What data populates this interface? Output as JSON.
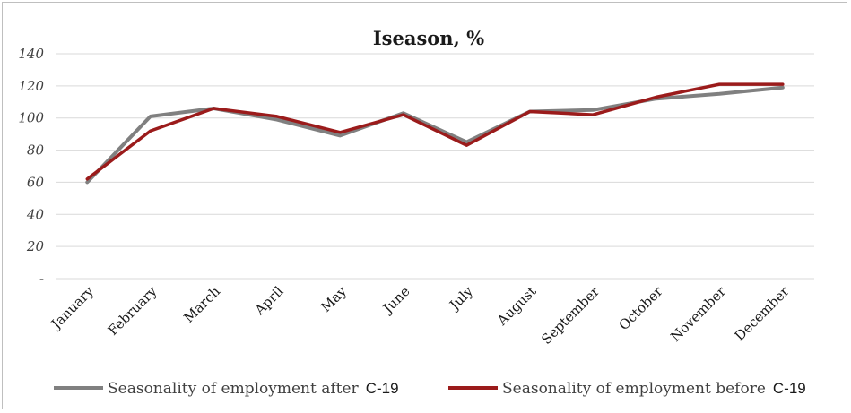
{
  "chart_data": {
    "type": "line",
    "title": "Iseason, %",
    "xlabel": "",
    "ylabel": "",
    "ylim": [
      0,
      140
    ],
    "y_ticks": [
      {
        "value": 0,
        "label": "-"
      },
      {
        "value": 20,
        "label": "20"
      },
      {
        "value": 40,
        "label": "40"
      },
      {
        "value": 60,
        "label": "60"
      },
      {
        "value": 80,
        "label": "80"
      },
      {
        "value": 100,
        "label": "100"
      },
      {
        "value": 120,
        "label": "120"
      },
      {
        "value": 140,
        "label": "140"
      }
    ],
    "grid": true,
    "legend_position": "bottom",
    "categories": [
      "January",
      "February",
      "March",
      "April",
      "May",
      "June",
      "July",
      "August",
      "September",
      "October",
      "November",
      "December"
    ],
    "series": [
      {
        "name": "Seasonality of employment after C-19",
        "legend_main": "Seasonality of employment after",
        "legend_suffix": "C-19",
        "color": "#808080",
        "values": [
          60,
          101,
          106,
          99,
          89,
          103,
          85,
          104,
          105,
          112,
          115,
          119
        ]
      },
      {
        "name": "Seasonality of employment before C-19",
        "legend_main": "Seasonality of employment before",
        "legend_suffix": "C-19",
        "color": "#9b1b1b",
        "values": [
          62,
          92,
          106,
          101,
          91,
          102,
          83,
          104,
          102,
          113,
          121,
          121
        ]
      }
    ]
  }
}
